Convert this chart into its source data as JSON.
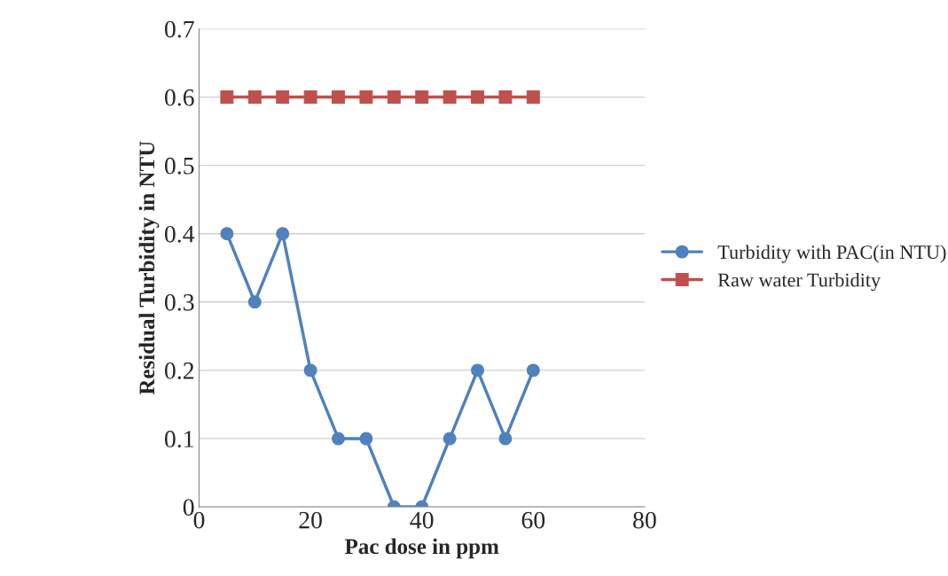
{
  "chart_data": {
    "type": "line",
    "xlabel": "Pac dose in ppm",
    "ylabel": "Residual Turbidity in NTU",
    "x": [
      5,
      10,
      15,
      20,
      25,
      30,
      35,
      40,
      45,
      50,
      55,
      60
    ],
    "series": [
      {
        "name": "Turbidity with PAC(in NTU)",
        "color": "#4f81bd",
        "marker": "circle",
        "values": [
          0.4,
          0.3,
          0.4,
          0.2,
          0.1,
          0.1,
          0,
          0,
          0.1,
          0.2,
          0.1,
          0.2
        ]
      },
      {
        "name": "Raw water Turbidity",
        "color": "#c0504d",
        "marker": "square",
        "values": [
          0.6,
          0.6,
          0.6,
          0.6,
          0.6,
          0.6,
          0.6,
          0.6,
          0.6,
          0.6,
          0.6,
          0.6
        ]
      }
    ],
    "xlim": [
      0,
      80
    ],
    "xticks": [
      0,
      20,
      40,
      60,
      80
    ],
    "ylim": [
      0,
      0.7
    ],
    "yticks": [
      0,
      0.1,
      0.2,
      0.3,
      0.4,
      0.5,
      0.6,
      0.7
    ],
    "grid": "y",
    "legend": "right",
    "line_style": "solid"
  }
}
